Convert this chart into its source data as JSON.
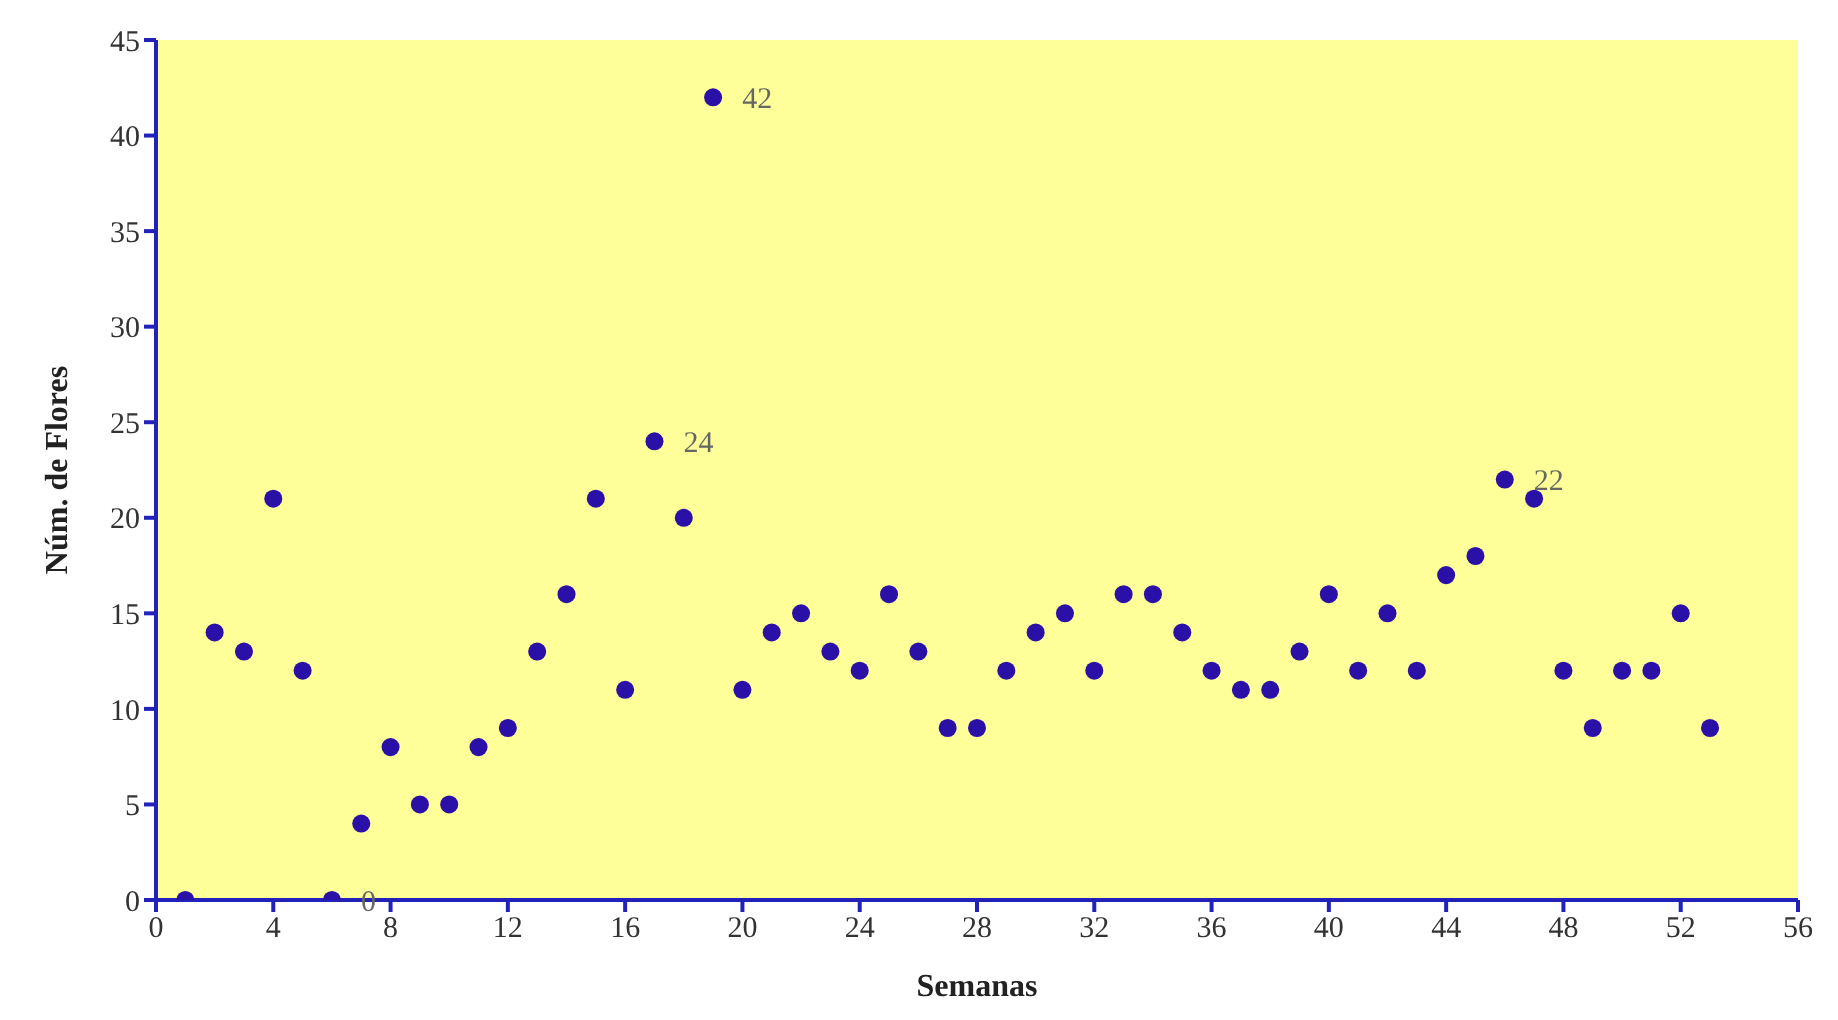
{
  "chart_data": {
    "type": "scatter",
    "xlabel": "Semanas",
    "ylabel": "Núm. de Flores",
    "x": [
      1,
      2,
      3,
      4,
      5,
      6,
      7,
      8,
      9,
      10,
      11,
      12,
      13,
      14,
      15,
      16,
      17,
      18,
      19,
      20,
      21,
      22,
      23,
      24,
      25,
      26,
      27,
      28,
      29,
      30,
      31,
      32,
      33,
      34,
      35,
      36,
      37,
      38,
      39,
      40,
      41,
      42,
      43,
      44,
      45,
      46,
      47,
      48,
      49,
      50,
      51,
      52,
      53
    ],
    "series": [
      {
        "color": "#2b10a8",
        "values": [
          0,
          14,
          13,
          21,
          12,
          0,
          4,
          8,
          5,
          5,
          8,
          9,
          13,
          16,
          21,
          11,
          24,
          20,
          42,
          11,
          14,
          15,
          13,
          12,
          16,
          13,
          9,
          9,
          12,
          14,
          15,
          12,
          16,
          16,
          14,
          12,
          11,
          11,
          13,
          16,
          12,
          15,
          12,
          17,
          18,
          22,
          21,
          12,
          9,
          12,
          12,
          15,
          9
        ],
        "value_labels": [
          null,
          null,
          null,
          null,
          null,
          "0",
          null,
          null,
          null,
          null,
          null,
          null,
          null,
          null,
          null,
          null,
          "24",
          null,
          "42",
          null,
          null,
          null,
          null,
          null,
          null,
          null,
          null,
          null,
          null,
          null,
          null,
          null,
          null,
          null,
          null,
          null,
          null,
          null,
          null,
          null,
          null,
          null,
          null,
          null,
          null,
          "22",
          null,
          null,
          null,
          null,
          null,
          null,
          null
        ]
      }
    ],
    "xlim": [
      0,
      56
    ],
    "xticks": [
      0,
      4,
      8,
      12,
      16,
      20,
      24,
      28,
      32,
      36,
      40,
      44,
      48,
      52,
      56
    ],
    "ylim": [
      0,
      45
    ],
    "yticks": [
      0,
      5,
      10,
      15,
      20,
      25,
      30,
      35,
      40,
      45
    ],
    "marker": "circle",
    "legend": false,
    "grid": false
  }
}
